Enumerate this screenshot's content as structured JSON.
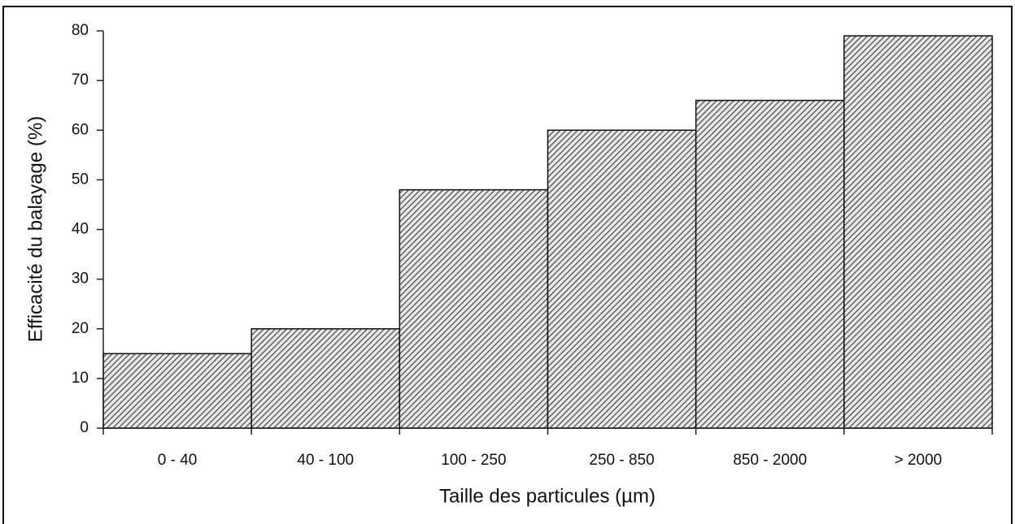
{
  "chart_data": {
    "type": "bar",
    "x_label": "Taille des particules (µm)",
    "y_label": "Efficacité du balayage (%)",
    "categories": [
      "0 - 40",
      "40 - 100",
      "100 - 250",
      "250 - 850",
      "850 - 2000",
      "> 2000"
    ],
    "values": [
      15,
      20,
      48,
      60,
      66,
      79
    ],
    "color": "#444444",
    "ylim": [
      0,
      80
    ],
    "yticks": [
      0,
      10,
      20,
      30,
      40,
      50,
      60,
      70,
      80
    ],
    "grid": false
  }
}
